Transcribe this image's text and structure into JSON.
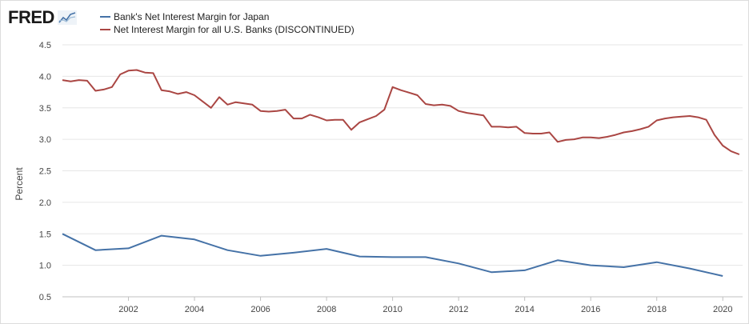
{
  "header": {
    "logo_text": "FRED",
    "logo_icon": "fred-chart-icon"
  },
  "colors": {
    "japan": "#4572a7",
    "us": "#aa4643",
    "grid": "#e6e6e6",
    "axis": "#444444"
  },
  "chart_data": {
    "type": "line",
    "title": "",
    "xlabel": "",
    "ylabel": "Percent",
    "xlim": [
      2000.0,
      2020.6
    ],
    "ylim": [
      0.5,
      4.5
    ],
    "yticks": [
      "0.5",
      "1.0",
      "1.5",
      "2.0",
      "2.5",
      "3.0",
      "3.5",
      "4.0",
      "4.5"
    ],
    "xticks": [
      "2002",
      "2004",
      "2006",
      "2008",
      "2010",
      "2012",
      "2014",
      "2016",
      "2018",
      "2020"
    ],
    "grid": true,
    "legend": "top-left",
    "series": [
      {
        "name": "Bank's Net Interest Margin for Japan",
        "color": "#4572a7",
        "x": [
          2000,
          2001,
          2002,
          2003,
          2004,
          2005,
          2006,
          2007,
          2008,
          2009,
          2010,
          2011,
          2012,
          2013,
          2014,
          2015,
          2016,
          2017,
          2018,
          2019,
          2020
        ],
        "y": [
          1.5,
          1.24,
          1.27,
          1.47,
          1.41,
          1.24,
          1.15,
          1.2,
          1.26,
          1.14,
          1.13,
          1.13,
          1.03,
          0.89,
          0.92,
          1.08,
          1.0,
          0.97,
          1.05,
          0.95,
          0.83
        ]
      },
      {
        "name": "Net Interest Margin for all U.S. Banks (DISCONTINUED)",
        "color": "#aa4643",
        "x": [
          2000.0,
          2000.25,
          2000.5,
          2000.75,
          2001.0,
          2001.25,
          2001.5,
          2001.75,
          2002.0,
          2002.25,
          2002.5,
          2002.75,
          2003.0,
          2003.25,
          2003.5,
          2003.75,
          2004.0,
          2004.25,
          2004.5,
          2004.75,
          2005.0,
          2005.25,
          2005.5,
          2005.75,
          2006.0,
          2006.25,
          2006.5,
          2006.75,
          2007.0,
          2007.25,
          2007.5,
          2007.75,
          2008.0,
          2008.25,
          2008.5,
          2008.75,
          2009.0,
          2009.25,
          2009.5,
          2009.75,
          2010.0,
          2010.25,
          2010.5,
          2010.75,
          2011.0,
          2011.25,
          2011.5,
          2011.75,
          2012.0,
          2012.25,
          2012.5,
          2012.75,
          2013.0,
          2013.25,
          2013.5,
          2013.75,
          2014.0,
          2014.25,
          2014.5,
          2014.75,
          2015.0,
          2015.25,
          2015.5,
          2015.75,
          2016.0,
          2016.25,
          2016.5,
          2016.75,
          2017.0,
          2017.25,
          2017.5,
          2017.75,
          2018.0,
          2018.25,
          2018.5,
          2018.75,
          2019.0,
          2019.25,
          2019.5,
          2019.75,
          2020.0,
          2020.25,
          2020.5
        ],
        "y": [
          3.94,
          3.92,
          3.94,
          3.93,
          3.77,
          3.79,
          3.83,
          4.03,
          4.09,
          4.1,
          4.06,
          4.05,
          3.78,
          3.76,
          3.72,
          3.75,
          3.7,
          3.6,
          3.5,
          3.67,
          3.55,
          3.59,
          3.57,
          3.55,
          3.45,
          3.44,
          3.45,
          3.47,
          3.33,
          3.33,
          3.39,
          3.35,
          3.3,
          3.31,
          3.31,
          3.15,
          3.27,
          3.32,
          3.37,
          3.47,
          3.83,
          3.78,
          3.74,
          3.7,
          3.56,
          3.54,
          3.55,
          3.53,
          3.45,
          3.42,
          3.4,
          3.38,
          3.2,
          3.2,
          3.19,
          3.2,
          3.1,
          3.09,
          3.09,
          3.11,
          2.96,
          2.99,
          3.0,
          3.03,
          3.03,
          3.02,
          3.04,
          3.07,
          3.11,
          3.13,
          3.16,
          3.2,
          3.3,
          3.33,
          3.35,
          3.36,
          3.37,
          3.35,
          3.31,
          3.07,
          2.9,
          2.81,
          2.76
        ]
      }
    ]
  }
}
